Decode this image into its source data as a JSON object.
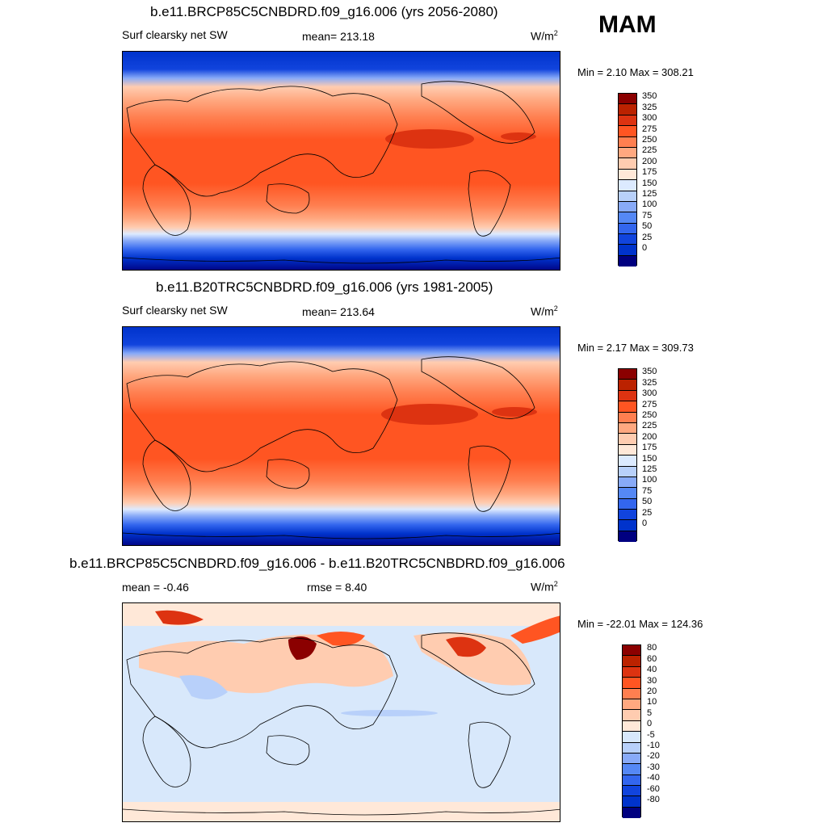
{
  "season": "MAM",
  "panels": [
    {
      "title": "b.e11.BRCP85C5CNBDRD.f09_g16.006 (yrs 2056-2080)",
      "left_label": "Surf clearsky net SW",
      "center_label": "mean= 213.18",
      "units": "W/m",
      "units_sup": "2",
      "minmax": "Min =   2.10 Max = 308.21"
    },
    {
      "title": "b.e11.B20TRC5CNBDRD.f09_g16.006 (yrs 1981-2005)",
      "left_label": "Surf clearsky net SW",
      "center_label": "mean= 213.64",
      "units": "W/m",
      "units_sup": "2",
      "minmax": "Min =   2.17 Max = 309.73"
    },
    {
      "title": "b.e11.BRCP85C5CNBDRD.f09_g16.006 - b.e11.B20TRC5CNBDRD.f09_g16.006",
      "left_label": "mean =  -0.46",
      "center_label": "rmse =   8.40",
      "units": "W/m",
      "units_sup": "2",
      "minmax": "Min = -22.01 Max = 124.36"
    }
  ],
  "chart_data": [
    {
      "type": "heatmap",
      "title": "b.e11.BRCP85C5CNBDRD.f09_g16.006 (yrs 2056-2080)",
      "variable": "Surf clearsky net SW",
      "units": "W/m2",
      "mean": 213.18,
      "min": 2.1,
      "max": 308.21,
      "colorbar_levels": [
        0,
        25,
        50,
        75,
        100,
        125,
        150,
        175,
        200,
        225,
        250,
        275,
        300,
        325,
        350
      ]
    },
    {
      "type": "heatmap",
      "title": "b.e11.B20TRC5CNBDRD.f09_g16.006 (yrs 1981-2005)",
      "variable": "Surf clearsky net SW",
      "units": "W/m2",
      "mean": 213.64,
      "min": 2.17,
      "max": 309.73,
      "colorbar_levels": [
        0,
        25,
        50,
        75,
        100,
        125,
        150,
        175,
        200,
        225,
        250,
        275,
        300,
        325,
        350
      ]
    },
    {
      "type": "heatmap",
      "title": "b.e11.BRCP85C5CNBDRD.f09_g16.006 - b.e11.B20TRC5CNBDRD.f09_g16.006",
      "units": "W/m2",
      "mean": -0.46,
      "rmse": 8.4,
      "min": -22.01,
      "max": 124.36,
      "colorbar_levels": [
        -80,
        -60,
        -40,
        -30,
        -20,
        -10,
        -5,
        0,
        5,
        10,
        20,
        30,
        40,
        60,
        80
      ]
    }
  ],
  "colors": {
    "abs_scale": [
      "#000080",
      "#0022aa",
      "#0033cc",
      "#1144dd",
      "#3366ee",
      "#5588f5",
      "#88aaf8",
      "#b8d0fa",
      "#dceaff",
      "#ffe8d8",
      "#ffccb0",
      "#ffa880",
      "#ff7f50",
      "#ff5522",
      "#dd3311",
      "#bb2200",
      "#8b0000"
    ],
    "diff_scale": [
      "#000080",
      "#0022aa",
      "#0033cc",
      "#1144dd",
      "#3366ee",
      "#5588f5",
      "#88aaf8",
      "#b8d0fa",
      "#d8e8fb",
      "#ffe8d8",
      "#ffccb0",
      "#ffa880",
      "#ff7f50",
      "#ff5522",
      "#dd3311",
      "#bb2200",
      "#8b0000"
    ]
  }
}
